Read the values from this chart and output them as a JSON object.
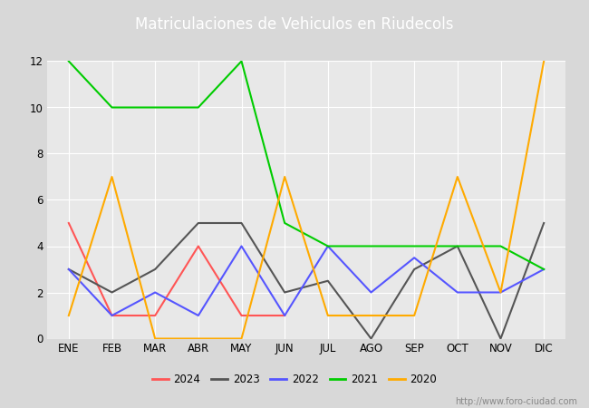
{
  "title": "Matriculaciones de Vehiculos en Riudecols",
  "months": [
    "ENE",
    "FEB",
    "MAR",
    "ABR",
    "MAY",
    "JUN",
    "JUL",
    "AGO",
    "SEP",
    "OCT",
    "NOV",
    "DIC"
  ],
  "series": {
    "2024": [
      5,
      1,
      1,
      4,
      1,
      1,
      null,
      null,
      null,
      null,
      null,
      null
    ],
    "2023": [
      3,
      2,
      3,
      5,
      5,
      2,
      2.5,
      0,
      3,
      4,
      0,
      5
    ],
    "2022": [
      3,
      1,
      2,
      1,
      4,
      1,
      4,
      2,
      3.5,
      2,
      2,
      3
    ],
    "2021": [
      12,
      10,
      10,
      10,
      12,
      5,
      4,
      4,
      4,
      4,
      4,
      3
    ],
    "2020": [
      1,
      7,
      0,
      0,
      0,
      7,
      1,
      1,
      1,
      7,
      2,
      12
    ]
  },
  "colors": {
    "2024": "#ff5555",
    "2023": "#555555",
    "2022": "#5555ff",
    "2021": "#00cc00",
    "2020": "#ffaa00"
  },
  "ylim": [
    0,
    12
  ],
  "yticks": [
    0,
    2,
    4,
    6,
    8,
    10,
    12
  ],
  "title_bg_color": "#4f7dc8",
  "plot_bg_color": "#e8e8e8",
  "fig_bg_color": "#d8d8d8",
  "watermark": "http://www.foro-ciudad.com"
}
